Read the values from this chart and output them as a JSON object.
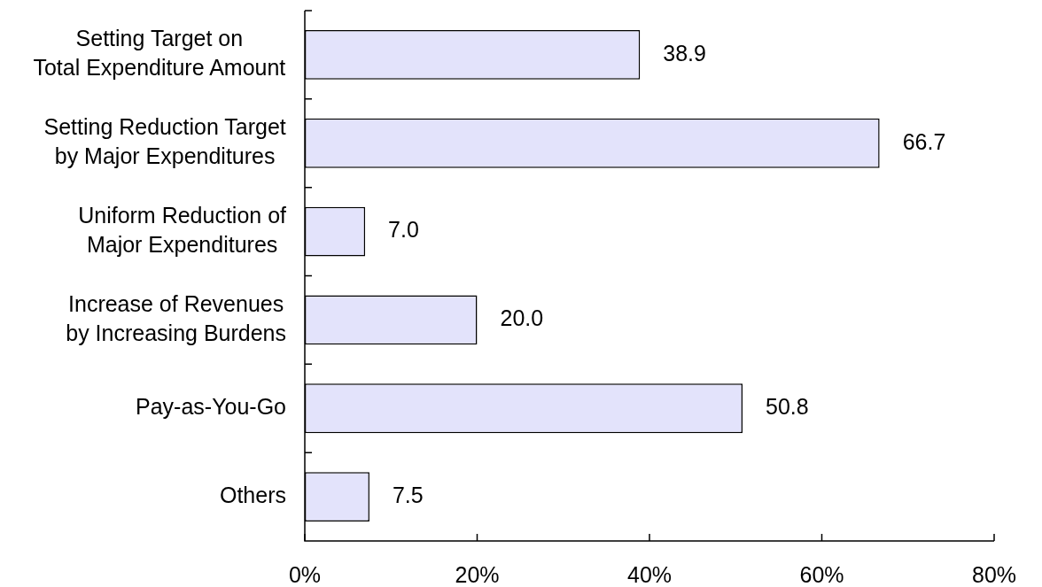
{
  "chart_data": {
    "type": "bar",
    "orientation": "horizontal",
    "categories": [
      "Setting Target on\nTotal Expenditure Amount",
      "Setting Reduction Target\nby Major Expenditures",
      "Uniform Reduction of\nMajor Expenditures",
      "Increase of Revenues\nby Increasing Burdens",
      "Pay-as-You-Go",
      "Others"
    ],
    "values": [
      38.9,
      66.7,
      7.0,
      20.0,
      50.8,
      7.5
    ],
    "color": "#e3e3fb",
    "value_labels": [
      "38.9",
      "66.7",
      "7.0",
      "20.0",
      "50.8",
      "7.5"
    ],
    "xlim": [
      0,
      80
    ],
    "xticks": [
      {
        "value": 0,
        "label": "0%"
      },
      {
        "value": 20,
        "label": "20%"
      },
      {
        "value": 40,
        "label": "40%"
      },
      {
        "value": 60,
        "label": "60%"
      },
      {
        "value": 80,
        "label": "80%"
      }
    ]
  }
}
